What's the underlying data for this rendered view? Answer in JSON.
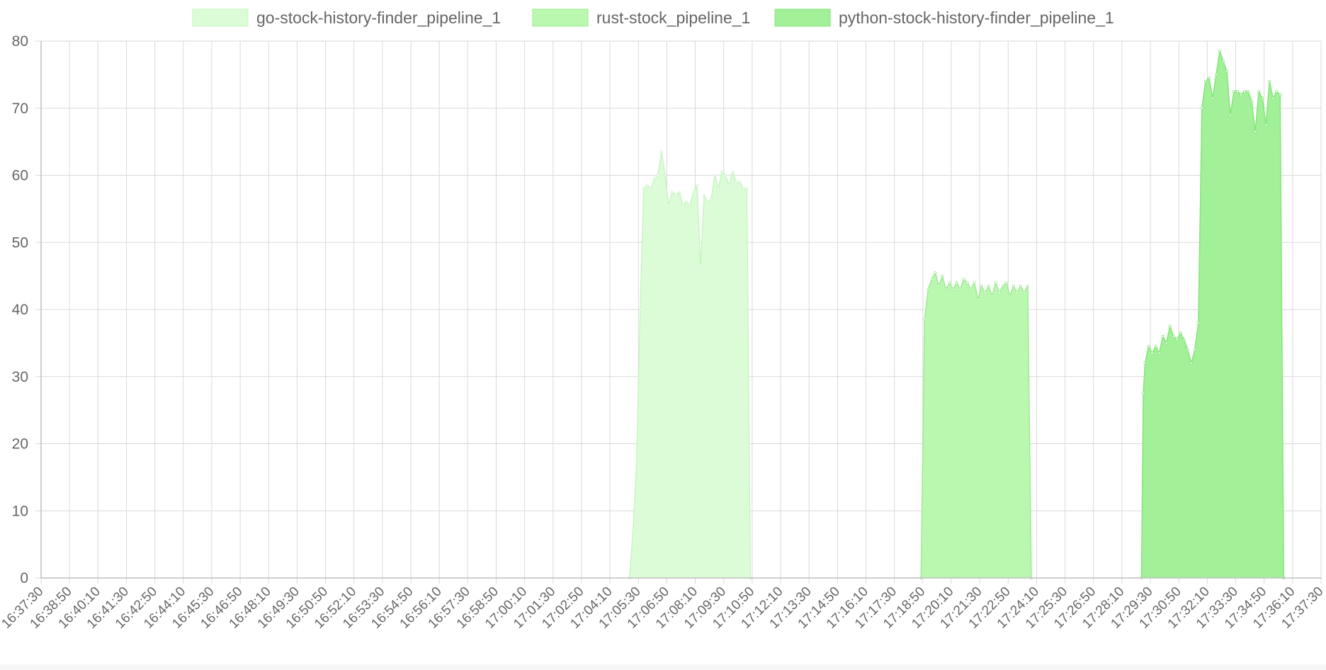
{
  "chart_data": {
    "type": "area",
    "title": "",
    "xlabel": "",
    "ylabel": "",
    "ylim": [
      0,
      80
    ],
    "yticks": [
      0,
      10,
      20,
      30,
      40,
      50,
      60,
      70,
      80
    ],
    "grid": true,
    "legend_position": "top",
    "x_tick_labels": [
      "16:37:30",
      "16:38:50",
      "16:40:10",
      "16:41:30",
      "16:42:50",
      "16:44:10",
      "16:45:30",
      "16:46:50",
      "16:48:10",
      "16:49:30",
      "16:50:50",
      "16:52:10",
      "16:53:30",
      "16:54:50",
      "16:56:10",
      "16:57:30",
      "16:58:50",
      "17:00:10",
      "17:01:30",
      "17:02:50",
      "17:04:10",
      "17:05:30",
      "17:06:50",
      "17:08:10",
      "17:09:30",
      "17:10:50",
      "17:12:10",
      "17:13:30",
      "17:14:50",
      "17:16:10",
      "17:17:30",
      "17:18:50",
      "17:20:10",
      "17:21:30",
      "17:22:50",
      "17:24:10",
      "17:25:30",
      "17:26:50",
      "17:28:10",
      "17:29:30",
      "17:30:50",
      "17:32:10",
      "17:33:30",
      "17:34:50",
      "17:36:10",
      "17:37:30"
    ],
    "series": [
      {
        "name": "go-stock-history-finder_pipeline_1",
        "fill": "#dcfcd8",
        "stroke": "#c7f5c1",
        "points": [
          [
            "17:05:05",
            0
          ],
          [
            "17:05:15",
            7
          ],
          [
            "17:05:25",
            17
          ],
          [
            "17:05:35",
            40
          ],
          [
            "17:05:45",
            58
          ],
          [
            "17:05:55",
            58.5
          ],
          [
            "17:06:05",
            58
          ],
          [
            "17:06:15",
            59.5
          ],
          [
            "17:06:25",
            60
          ],
          [
            "17:06:35",
            63.5
          ],
          [
            "17:06:45",
            60
          ],
          [
            "17:06:55",
            55.5
          ],
          [
            "17:07:05",
            57.5
          ],
          [
            "17:07:15",
            57
          ],
          [
            "17:07:25",
            57.5
          ],
          [
            "17:07:35",
            55.5
          ],
          [
            "17:07:45",
            56
          ],
          [
            "17:07:55",
            55.5
          ],
          [
            "17:08:05",
            57.5
          ],
          [
            "17:08:15",
            58.5
          ],
          [
            "17:08:25",
            46.5
          ],
          [
            "17:08:35",
            57
          ],
          [
            "17:08:45",
            56
          ],
          [
            "17:08:55",
            56.5
          ],
          [
            "17:09:05",
            60
          ],
          [
            "17:09:15",
            58
          ],
          [
            "17:09:25",
            60.5
          ],
          [
            "17:09:35",
            60
          ],
          [
            "17:09:45",
            58.5
          ],
          [
            "17:09:55",
            60.5
          ],
          [
            "17:10:05",
            59
          ],
          [
            "17:10:15",
            59
          ],
          [
            "17:10:25",
            58
          ],
          [
            "17:10:35",
            58
          ],
          [
            "17:10:45",
            0
          ]
        ]
      },
      {
        "name": "rust-stock_pipeline_1",
        "fill": "#baf8b0",
        "stroke": "#9eea92",
        "points": [
          [
            "17:18:45",
            0
          ],
          [
            "17:18:55",
            38.5
          ],
          [
            "17:19:05",
            43
          ],
          [
            "17:19:15",
            44.5
          ],
          [
            "17:19:25",
            45.5
          ],
          [
            "17:19:35",
            43.5
          ],
          [
            "17:19:45",
            45
          ],
          [
            "17:19:55",
            43
          ],
          [
            "17:20:05",
            44
          ],
          [
            "17:20:15",
            43
          ],
          [
            "17:20:25",
            44
          ],
          [
            "17:20:35",
            43
          ],
          [
            "17:20:45",
            44.5
          ],
          [
            "17:20:55",
            44
          ],
          [
            "17:21:05",
            43
          ],
          [
            "17:21:15",
            44
          ],
          [
            "17:21:25",
            41.5
          ],
          [
            "17:21:35",
            43.5
          ],
          [
            "17:21:45",
            42.5
          ],
          [
            "17:21:55",
            43.5
          ],
          [
            "17:22:05",
            42
          ],
          [
            "17:22:15",
            44
          ],
          [
            "17:22:25",
            42.5
          ],
          [
            "17:22:35",
            43.5
          ],
          [
            "17:22:45",
            44
          ],
          [
            "17:22:55",
            42
          ],
          [
            "17:23:05",
            43.5
          ],
          [
            "17:23:15",
            42.5
          ],
          [
            "17:23:25",
            43.5
          ],
          [
            "17:23:35",
            42.5
          ],
          [
            "17:23:45",
            43.5
          ],
          [
            "17:23:55",
            0
          ]
        ]
      },
      {
        "name": "python-stock-history-finder_pipeline_1",
        "fill": "#a2f098",
        "stroke": "#86e47a",
        "points": [
          [
            "17:29:05",
            0
          ],
          [
            "17:29:10",
            27.5
          ],
          [
            "17:29:15",
            32
          ],
          [
            "17:29:25",
            34.5
          ],
          [
            "17:29:35",
            33.5
          ],
          [
            "17:29:45",
            34.5
          ],
          [
            "17:29:55",
            33.5
          ],
          [
            "17:30:05",
            36
          ],
          [
            "17:30:15",
            35
          ],
          [
            "17:30:25",
            37.5
          ],
          [
            "17:30:35",
            36
          ],
          [
            "17:30:45",
            35.5
          ],
          [
            "17:30:55",
            36.5
          ],
          [
            "17:31:05",
            35.5
          ],
          [
            "17:31:15",
            34
          ],
          [
            "17:31:25",
            32
          ],
          [
            "17:31:35",
            34
          ],
          [
            "17:31:45",
            38
          ],
          [
            "17:31:55",
            70
          ],
          [
            "17:32:05",
            74
          ],
          [
            "17:32:15",
            74.5
          ],
          [
            "17:32:25",
            71.5
          ],
          [
            "17:32:35",
            75
          ],
          [
            "17:32:45",
            78.5
          ],
          [
            "17:32:55",
            77
          ],
          [
            "17:33:05",
            75.5
          ],
          [
            "17:33:15",
            69
          ],
          [
            "17:33:25",
            72.5
          ],
          [
            "17:33:35",
            72.5
          ],
          [
            "17:33:45",
            72
          ],
          [
            "17:33:55",
            72.5
          ],
          [
            "17:34:05",
            72.5
          ],
          [
            "17:34:15",
            71
          ],
          [
            "17:34:25",
            66.5
          ],
          [
            "17:34:35",
            72.5
          ],
          [
            "17:34:45",
            71.5
          ],
          [
            "17:34:55",
            67.5
          ],
          [
            "17:35:05",
            74
          ],
          [
            "17:35:15",
            71.5
          ],
          [
            "17:35:25",
            72.5
          ],
          [
            "17:35:35",
            72
          ],
          [
            "17:35:45",
            0
          ]
        ]
      }
    ]
  }
}
